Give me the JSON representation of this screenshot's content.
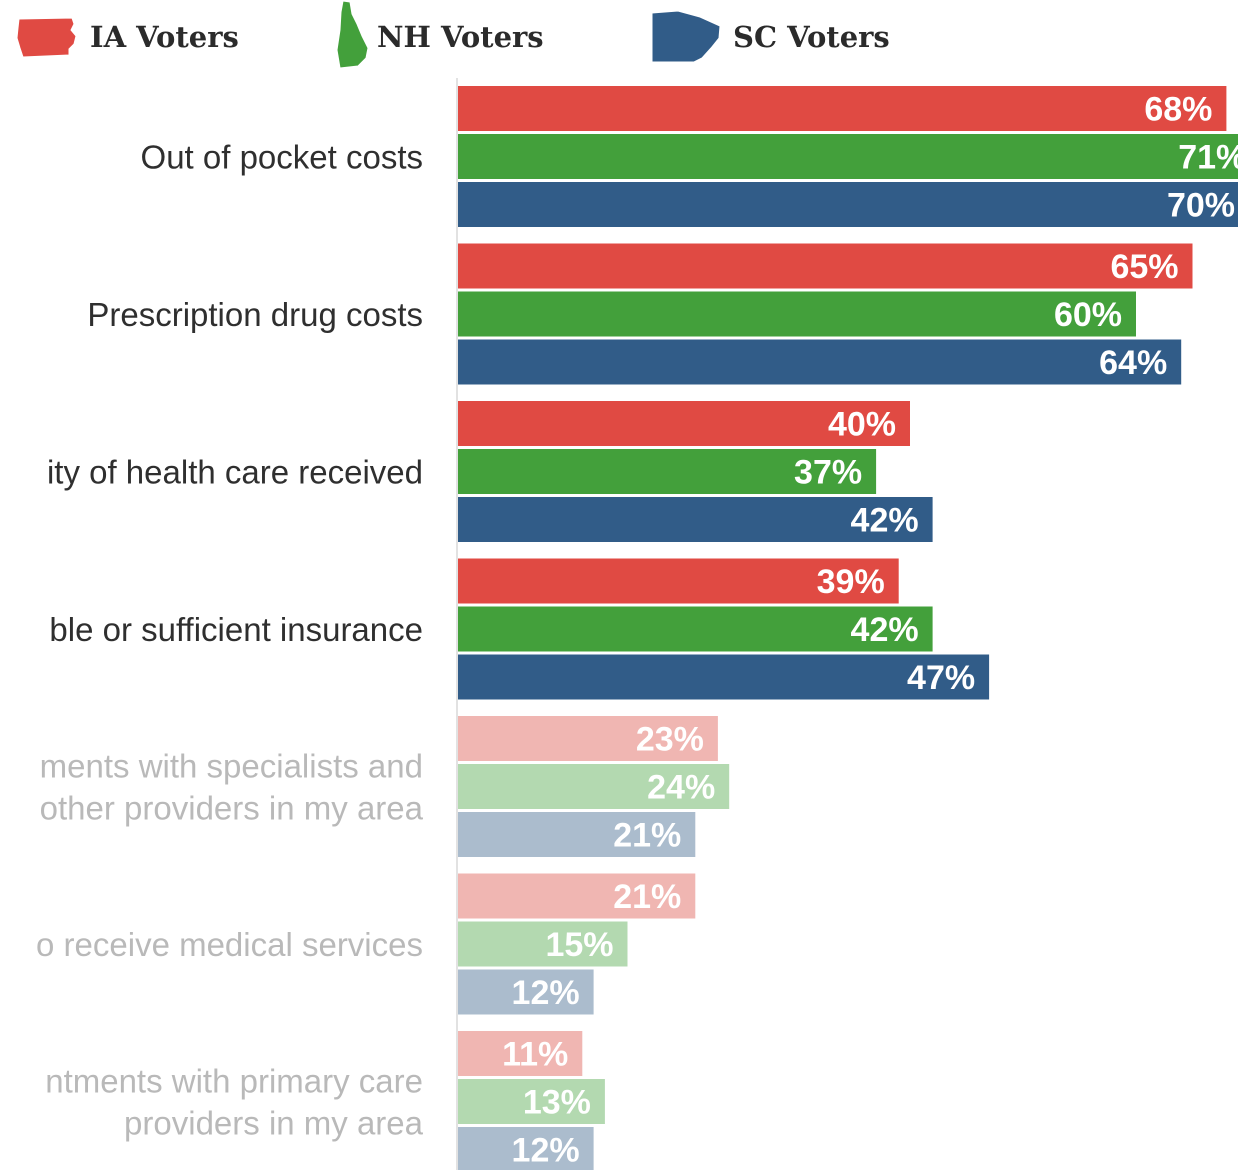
{
  "chart_data": {
    "type": "bar",
    "orientation": "horizontal",
    "legend_position": "top",
    "grid": false,
    "xlim": [
      0,
      71
    ],
    "categories": [
      "Out of pocket costs",
      "Prescription drug costs",
      "ity of health care received",
      "ble or sufficient insurance",
      "ments with specialists and other providers in my area",
      "o receive medical services",
      "ntments with primary care providers in my area"
    ],
    "category_lines": [
      [
        "Out of pocket costs"
      ],
      [
        "Prescription drug costs"
      ],
      [
        "ity of health care received"
      ],
      [
        "ble or sufficient insurance"
      ],
      [
        "ments with specialists and",
        "other providers in my area"
      ],
      [
        "o receive medical services"
      ],
      [
        "ntments with primary care",
        "providers in my area"
      ]
    ],
    "highlighted_count": 4,
    "series": [
      {
        "name": "IA Voters",
        "color": "#e04a43",
        "faded_color": "#f0b6b2",
        "icon": "iowa-state-icon",
        "values": [
          68,
          65,
          40,
          39,
          23,
          21,
          11
        ]
      },
      {
        "name": "NH Voters",
        "color": "#43a03b",
        "faded_color": "#b3d9b0",
        "icon": "new-hampshire-state-icon",
        "values": [
          71,
          60,
          37,
          42,
          24,
          15,
          13
        ]
      },
      {
        "name": "SC Voters",
        "color": "#315c88",
        "faded_color": "#abbccd",
        "icon": "south-carolina-state-icon",
        "values": [
          70,
          64,
          42,
          47,
          21,
          12,
          12
        ]
      }
    ],
    "value_suffix": "%"
  },
  "colors": {
    "category_label": "#2f2f2f",
    "category_label_faded": "#b9b9b9"
  }
}
